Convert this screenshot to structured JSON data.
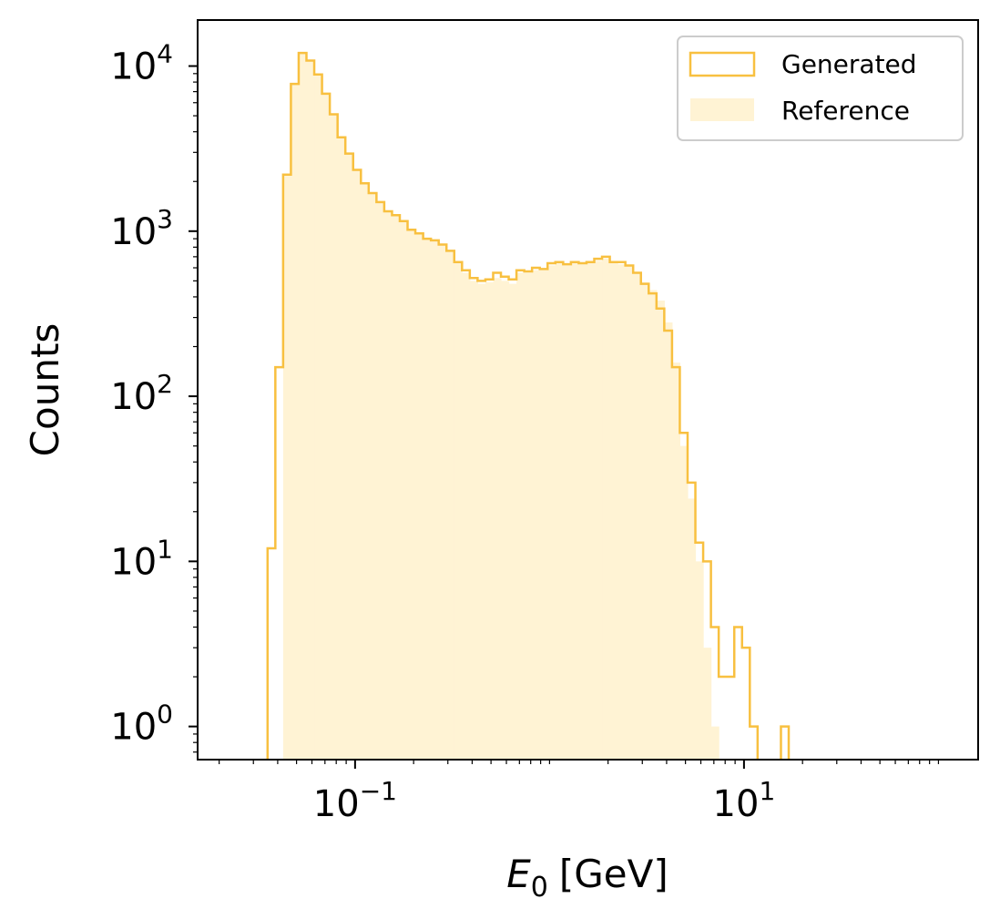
{
  "chart_data": {
    "type": "histogram",
    "xlabel": {
      "symbol": "E",
      "subscript": "0",
      "unit": "[GeV]"
    },
    "ylabel": "Counts",
    "xscale": "log",
    "yscale": "log",
    "xlim": [
      0.0155,
      160
    ],
    "ylim": [
      0.63,
      19000
    ],
    "x_ticks": [
      {
        "value": 0.1,
        "base": "10",
        "exp": "−1"
      },
      {
        "value": 10,
        "base": "10",
        "exp": "1"
      }
    ],
    "y_ticks": [
      {
        "value": 1,
        "base": "10",
        "exp": "0"
      },
      {
        "value": 10,
        "base": "10",
        "exp": "1"
      },
      {
        "value": 100,
        "base": "10",
        "exp": "2"
      },
      {
        "value": 1000,
        "base": "10",
        "exp": "3"
      },
      {
        "value": 10000,
        "base": "10",
        "exp": "4"
      }
    ],
    "grid": false,
    "legend_position": "top-right",
    "bin_log10_start": -1.45,
    "bin_log10_width": 0.04,
    "series": [
      {
        "name": "Generated",
        "style": "step",
        "color": "#f8c040",
        "counts": [
          12,
          150,
          2200,
          7800,
          12000,
          10800,
          8900,
          6800,
          5100,
          3700,
          2950,
          2350,
          1950,
          1700,
          1500,
          1320,
          1250,
          1150,
          1020,
          970,
          900,
          880,
          830,
          760,
          650,
          580,
          520,
          500,
          510,
          560,
          530,
          510,
          580,
          570,
          600,
          590,
          640,
          650,
          630,
          650,
          640,
          650,
          680,
          700,
          650,
          650,
          620,
          560,
          480,
          420,
          340,
          250,
          150,
          60,
          30,
          13,
          10,
          4,
          2,
          2,
          4,
          3,
          1,
          0,
          0,
          0,
          1
        ]
      },
      {
        "name": "Reference",
        "style": "filled",
        "color": "#fff3d4",
        "counts": [
          0,
          0,
          2200,
          7800,
          12000,
          10800,
          8900,
          6800,
          5100,
          3700,
          2950,
          2350,
          1950,
          1700,
          1500,
          1320,
          1250,
          1150,
          1020,
          970,
          900,
          880,
          830,
          760,
          650,
          560,
          500,
          480,
          490,
          520,
          500,
          480,
          560,
          560,
          580,
          580,
          620,
          640,
          620,
          640,
          630,
          640,
          660,
          680,
          650,
          630,
          620,
          560,
          490,
          440,
          380,
          280,
          160,
          50,
          24,
          10,
          3,
          1
        ]
      }
    ]
  }
}
